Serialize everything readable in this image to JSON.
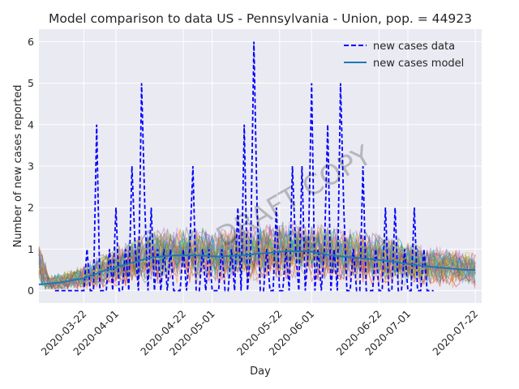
{
  "chart_data": {
    "type": "line",
    "title": "Model comparison to data US - Pennsylvania - Union, pop. = 44923",
    "xlabel": "Day",
    "ylabel": "Number of new cases reported",
    "xlim": [
      "2020-03-08",
      "2020-07-24"
    ],
    "ylim": [
      -0.3,
      6.3
    ],
    "grid": true,
    "legend_position": "top-right",
    "watermark": "DRAFT COPY",
    "x_ticks": [
      "2020-03-22",
      "2020-04-01",
      "2020-04-22",
      "2020-05-01",
      "2020-05-22",
      "2020-06-01",
      "2020-06-22",
      "2020-07-01",
      "2020-07-22"
    ],
    "y_ticks": [
      0,
      1,
      2,
      3,
      4,
      5,
      6
    ],
    "series": [
      {
        "name": "new cases data",
        "style": "dashed",
        "color": "#0000ff",
        "x": [
          "2020-03-13",
          "2020-03-14",
          "2020-03-15",
          "2020-03-16",
          "2020-03-17",
          "2020-03-18",
          "2020-03-19",
          "2020-03-20",
          "2020-03-21",
          "2020-03-22",
          "2020-03-23",
          "2020-03-24",
          "2020-03-25",
          "2020-03-26",
          "2020-03-27",
          "2020-03-28",
          "2020-03-29",
          "2020-03-30",
          "2020-03-31",
          "2020-04-01",
          "2020-04-02",
          "2020-04-03",
          "2020-04-04",
          "2020-04-05",
          "2020-04-06",
          "2020-04-07",
          "2020-04-08",
          "2020-04-09",
          "2020-04-10",
          "2020-04-11",
          "2020-04-12",
          "2020-04-13",
          "2020-04-14",
          "2020-04-15",
          "2020-04-16",
          "2020-04-17",
          "2020-04-18",
          "2020-04-19",
          "2020-04-20",
          "2020-04-21",
          "2020-04-22",
          "2020-04-23",
          "2020-04-24",
          "2020-04-25",
          "2020-04-26",
          "2020-04-27",
          "2020-04-28",
          "2020-04-29",
          "2020-04-30",
          "2020-05-01",
          "2020-05-02",
          "2020-05-03",
          "2020-05-04",
          "2020-05-05",
          "2020-05-06",
          "2020-05-07",
          "2020-05-08",
          "2020-05-09",
          "2020-05-10",
          "2020-05-11",
          "2020-05-12",
          "2020-05-13",
          "2020-05-14",
          "2020-05-15",
          "2020-05-16",
          "2020-05-17",
          "2020-05-18",
          "2020-05-19",
          "2020-05-20",
          "2020-05-21",
          "2020-05-22",
          "2020-05-23",
          "2020-05-24",
          "2020-05-25",
          "2020-05-26",
          "2020-05-27",
          "2020-05-28",
          "2020-05-29",
          "2020-05-30",
          "2020-05-31",
          "2020-06-01",
          "2020-06-02",
          "2020-06-03",
          "2020-06-04",
          "2020-06-05",
          "2020-06-06",
          "2020-06-07",
          "2020-06-08",
          "2020-06-09",
          "2020-06-10",
          "2020-06-11",
          "2020-06-12",
          "2020-06-13",
          "2020-06-14",
          "2020-06-15",
          "2020-06-16",
          "2020-06-17",
          "2020-06-18",
          "2020-06-19",
          "2020-06-20",
          "2020-06-21",
          "2020-06-22",
          "2020-06-23",
          "2020-06-24",
          "2020-06-25",
          "2020-06-26",
          "2020-06-27",
          "2020-06-28",
          "2020-06-29",
          "2020-06-30",
          "2020-07-01",
          "2020-07-02",
          "2020-07-03",
          "2020-07-04",
          "2020-07-05",
          "2020-07-06",
          "2020-07-07",
          "2020-07-08",
          "2020-07-09"
        ],
        "values": [
          0,
          0,
          0,
          0,
          0,
          0,
          0,
          0,
          0,
          0,
          1,
          0,
          0,
          4,
          0,
          0,
          0,
          1,
          0,
          2,
          0,
          0,
          1,
          0,
          3,
          1,
          0,
          5,
          2,
          0,
          2,
          0,
          1,
          0,
          1,
          0,
          1,
          0,
          0,
          0,
          1,
          0,
          1,
          3,
          0,
          0,
          1,
          0,
          1,
          0,
          0,
          0,
          1,
          0,
          0,
          1,
          0,
          2,
          0,
          4,
          0,
          1,
          6,
          2,
          0,
          0,
          1,
          0,
          0,
          2,
          0,
          0,
          1,
          0,
          3,
          1,
          0,
          3,
          0,
          1,
          5,
          0,
          1,
          0,
          1,
          4,
          0,
          1,
          0,
          5,
          2,
          0,
          0,
          1,
          0,
          0,
          3,
          0,
          0,
          0,
          1,
          0,
          0,
          2,
          0,
          0,
          2,
          0,
          0,
          1,
          0,
          0,
          2,
          0,
          0,
          1,
          0,
          0,
          0
        ]
      },
      {
        "name": "new cases model",
        "style": "solid",
        "color": "#1f77b4",
        "x": [
          "2020-03-08",
          "2020-03-15",
          "2020-03-22",
          "2020-03-29",
          "2020-04-05",
          "2020-04-12",
          "2020-04-19",
          "2020-04-26",
          "2020-05-03",
          "2020-05-10",
          "2020-05-17",
          "2020-05-24",
          "2020-05-31",
          "2020-06-07",
          "2020-06-14",
          "2020-06-21",
          "2020-06-28",
          "2020-07-05",
          "2020-07-12",
          "2020-07-19",
          "2020-07-22"
        ],
        "values": [
          0.15,
          0.2,
          0.3,
          0.5,
          0.65,
          0.8,
          0.85,
          0.85,
          0.82,
          0.85,
          0.9,
          0.95,
          0.95,
          0.85,
          0.8,
          0.75,
          0.68,
          0.6,
          0.55,
          0.5,
          0.5
        ]
      }
    ]
  }
}
